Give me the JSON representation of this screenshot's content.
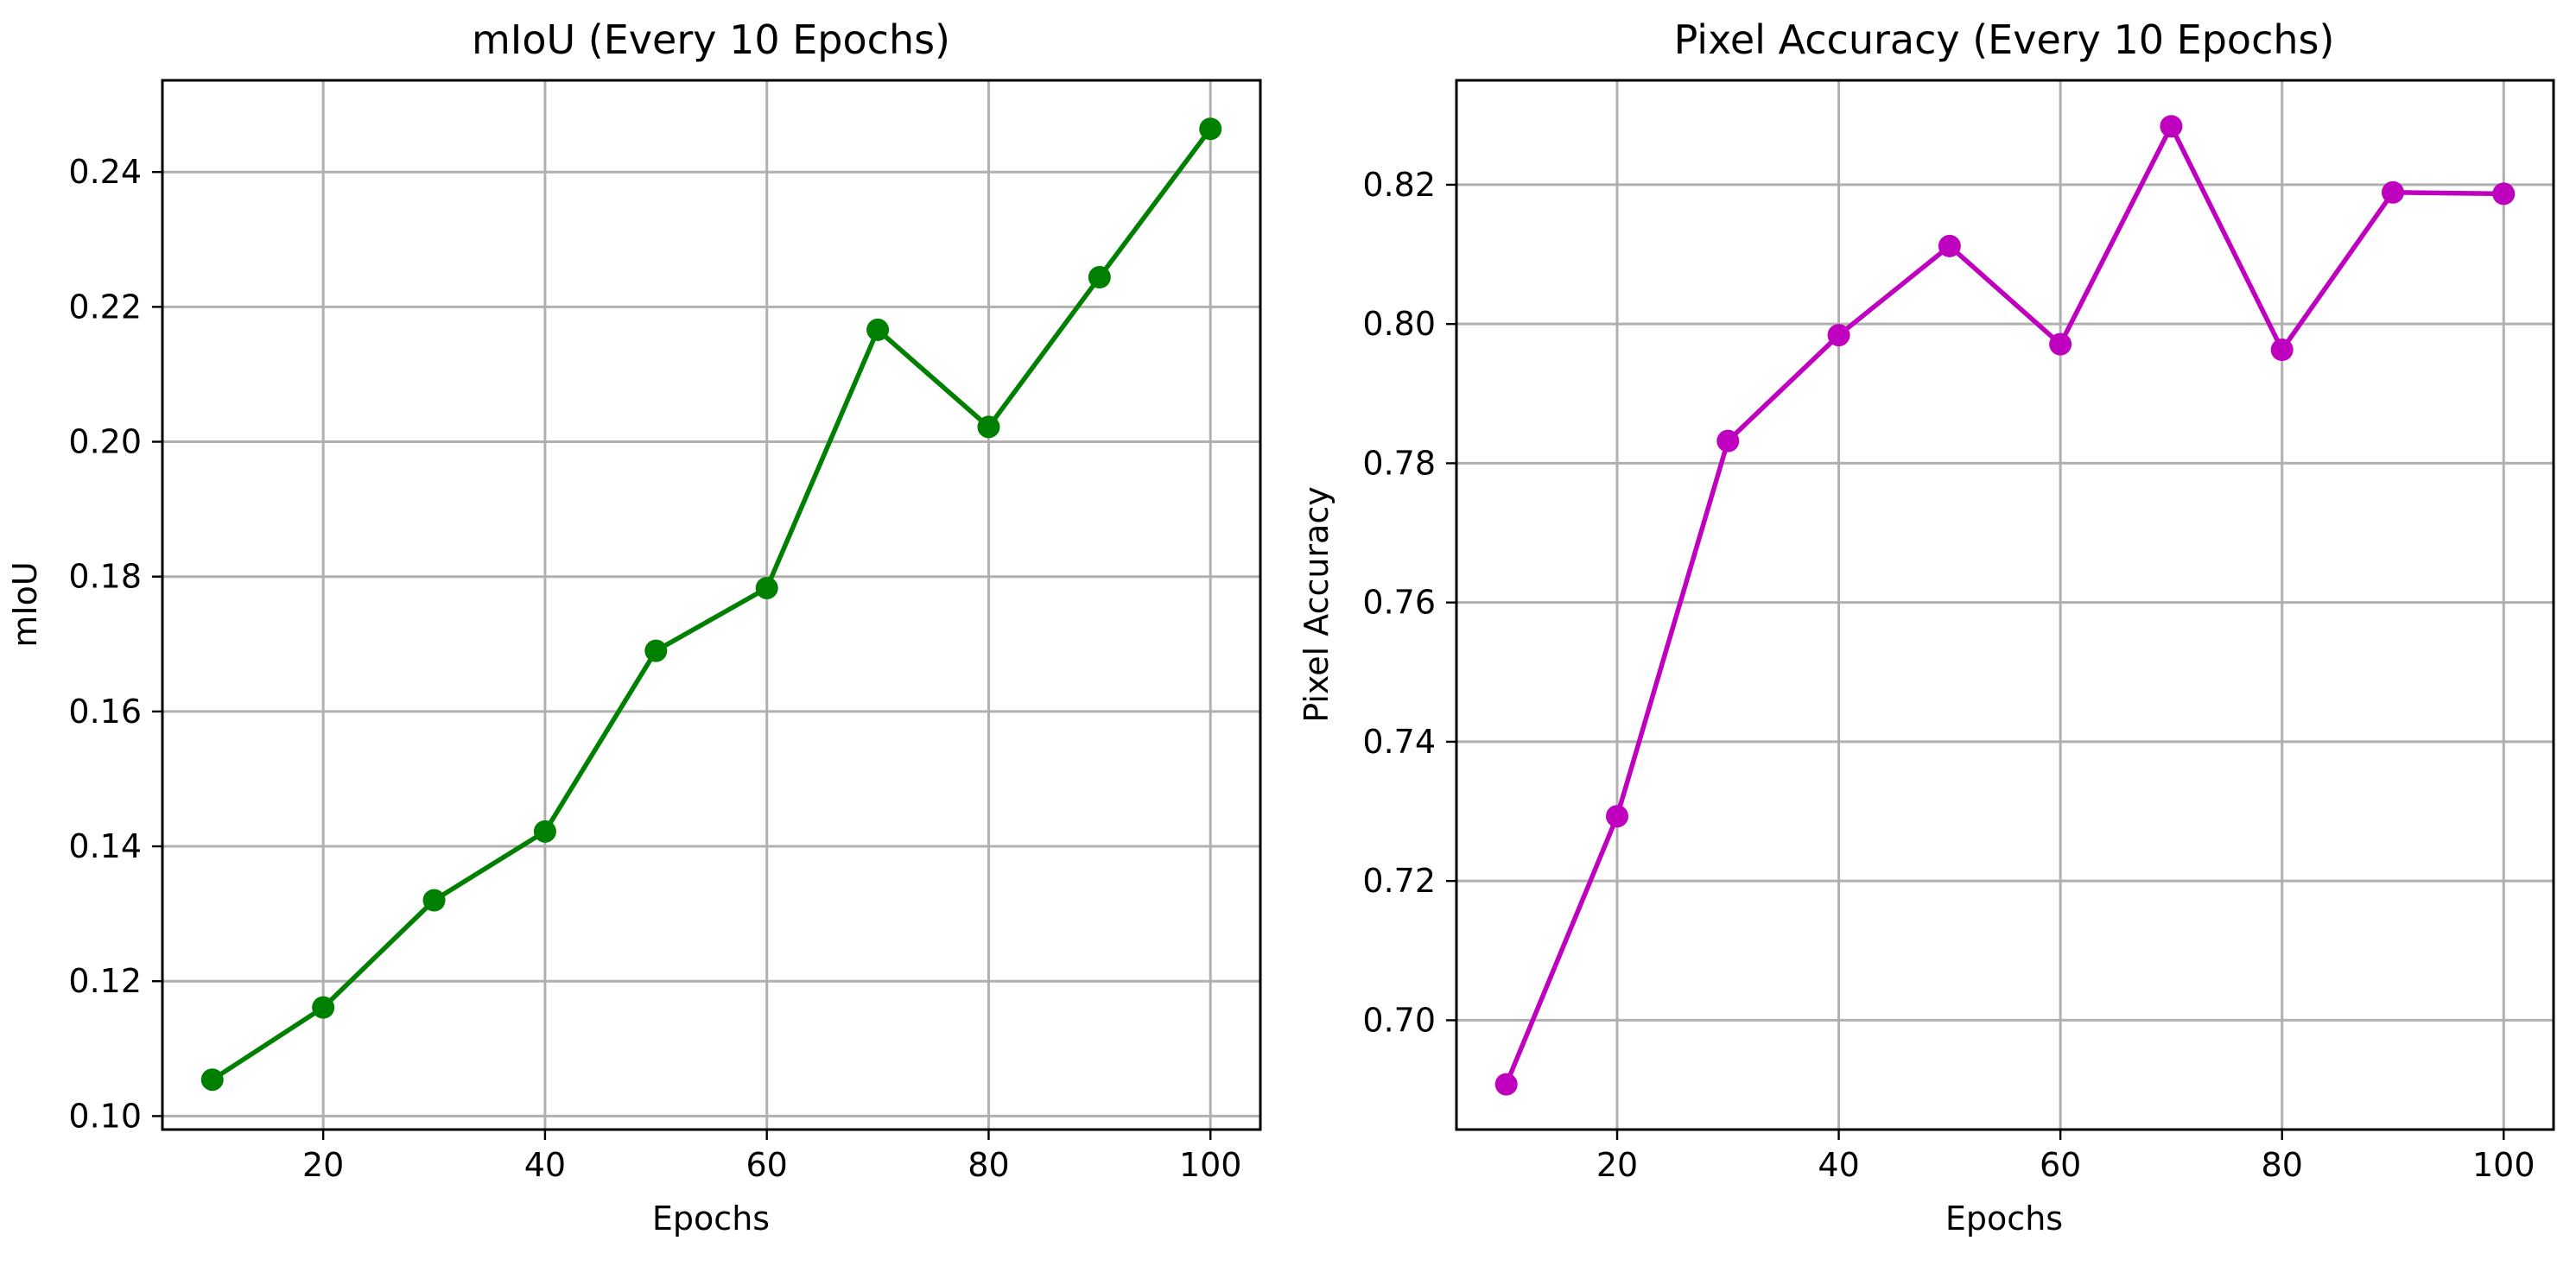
{
  "chart_data": [
    {
      "type": "line",
      "title": "mIoU (Every 10 Epochs)",
      "xlabel": "Epochs",
      "ylabel": "mIoU",
      "x": [
        10,
        20,
        30,
        40,
        50,
        60,
        70,
        80,
        90,
        100
      ],
      "xlim": [
        5.5,
        104.5
      ],
      "ylim": [
        0.098,
        0.2536
      ],
      "xticks": [
        20,
        40,
        60,
        80,
        100
      ],
      "xtick_labels": [
        "20",
        "40",
        "60",
        "80",
        "100"
      ],
      "yticks": [
        0.1,
        0.12,
        0.14,
        0.16,
        0.18,
        0.2,
        0.22,
        0.24
      ],
      "ytick_labels": [
        "0.10",
        "0.12",
        "0.14",
        "0.16",
        "0.18",
        "0.20",
        "0.22",
        "0.24"
      ],
      "grid": true,
      "series": [
        {
          "color": "#008000",
          "marker": "circle",
          "values": [
            0.1054,
            0.1161,
            0.132,
            0.1422,
            0.169,
            0.1783,
            0.2166,
            0.2022,
            0.2244,
            0.2464
          ]
        }
      ]
    },
    {
      "type": "line",
      "title": "Pixel Accuracy (Every 10 Epochs)",
      "xlabel": "Epochs",
      "ylabel": "Pixel Accuracy",
      "x": [
        10,
        20,
        30,
        40,
        50,
        60,
        70,
        80,
        90,
        100
      ],
      "xlim": [
        5.5,
        104.5
      ],
      "ylim": [
        0.6843,
        0.835
      ],
      "xticks": [
        20,
        40,
        60,
        80,
        100
      ],
      "xtick_labels": [
        "20",
        "40",
        "60",
        "80",
        "100"
      ],
      "yticks": [
        0.7,
        0.72,
        0.74,
        0.76,
        0.78,
        0.8,
        0.82
      ],
      "ytick_labels": [
        "0.70",
        "0.72",
        "0.74",
        "0.76",
        "0.78",
        "0.80",
        "0.82"
      ],
      "grid": true,
      "series": [
        {
          "color": "#bf00bf",
          "marker": "circle",
          "values": [
            0.6908,
            0.7293,
            0.7832,
            0.7984,
            0.8112,
            0.7971,
            0.8284,
            0.7963,
            0.8189,
            0.8187
          ]
        }
      ]
    }
  ]
}
